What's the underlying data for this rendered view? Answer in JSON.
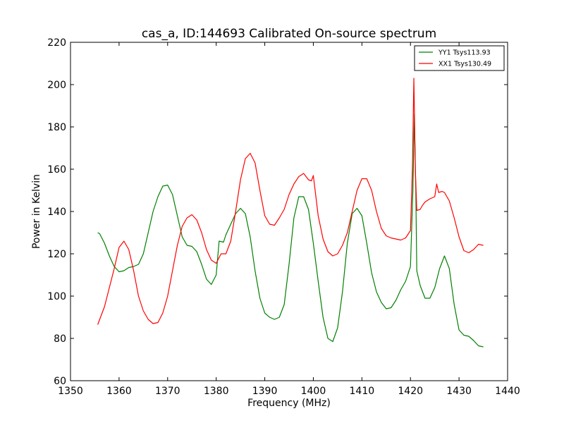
{
  "chart_data": {
    "type": "line",
    "title": "cas_a, ID:144693 Calibrated On-source spectrum",
    "xlabel": "Frequency (MHz)",
    "ylabel": "Power in Kelvin",
    "xlim": [
      1350,
      1440
    ],
    "ylim": [
      60,
      220
    ],
    "xticks": [
      1350,
      1360,
      1370,
      1380,
      1390,
      1400,
      1410,
      1420,
      1430,
      1440
    ],
    "yticks": [
      60,
      80,
      100,
      120,
      140,
      160,
      180,
      200,
      220
    ],
    "grid": false,
    "legend_position": "top-right",
    "series": [
      {
        "name": "YY1 Tsys113.93",
        "color": "#008000",
        "points": [
          [
            1355.6,
            130
          ],
          [
            1356.0,
            129.5
          ],
          [
            1357.0,
            125
          ],
          [
            1358.0,
            119
          ],
          [
            1359.0,
            114
          ],
          [
            1360.0,
            111.5
          ],
          [
            1361.0,
            112
          ],
          [
            1362.0,
            113.5
          ],
          [
            1363.0,
            114
          ],
          [
            1364.0,
            115
          ],
          [
            1365.0,
            120
          ],
          [
            1366.0,
            130
          ],
          [
            1367.0,
            140
          ],
          [
            1368.0,
            147
          ],
          [
            1369.0,
            152
          ],
          [
            1370.0,
            152.5
          ],
          [
            1371.0,
            148
          ],
          [
            1372.0,
            138
          ],
          [
            1373.0,
            128
          ],
          [
            1374.0,
            124
          ],
          [
            1375.0,
            123.5
          ],
          [
            1376.0,
            121
          ],
          [
            1377.0,
            115
          ],
          [
            1378.0,
            108
          ],
          [
            1379.0,
            105.5
          ],
          [
            1380.0,
            110
          ],
          [
            1380.6,
            126
          ],
          [
            1381.5,
            125.5
          ],
          [
            1382.0,
            129
          ],
          [
            1383.0,
            134
          ],
          [
            1384.0,
            139
          ],
          [
            1385.0,
            141.5
          ],
          [
            1386.0,
            139
          ],
          [
            1387.0,
            128
          ],
          [
            1388.0,
            112
          ],
          [
            1389.0,
            99
          ],
          [
            1390.0,
            92
          ],
          [
            1391.0,
            90
          ],
          [
            1392.0,
            89
          ],
          [
            1393.0,
            90
          ],
          [
            1394.0,
            96
          ],
          [
            1395.0,
            115
          ],
          [
            1396.0,
            137
          ],
          [
            1397.0,
            147
          ],
          [
            1398.0,
            147
          ],
          [
            1399.0,
            141
          ],
          [
            1400.0,
            125
          ],
          [
            1401.0,
            107
          ],
          [
            1402.0,
            90
          ],
          [
            1403.0,
            80
          ],
          [
            1404.0,
            78.5
          ],
          [
            1405.0,
            85
          ],
          [
            1406.0,
            102
          ],
          [
            1407.0,
            125
          ],
          [
            1408.0,
            139
          ],
          [
            1409.0,
            141.5
          ],
          [
            1410.0,
            138
          ],
          [
            1411.0,
            125
          ],
          [
            1412.0,
            111
          ],
          [
            1413.0,
            102
          ],
          [
            1414.0,
            97
          ],
          [
            1415.0,
            94
          ],
          [
            1416.0,
            94.5
          ],
          [
            1417.0,
            98
          ],
          [
            1418.0,
            103
          ],
          [
            1419.0,
            107
          ],
          [
            1420.0,
            114
          ],
          [
            1420.5,
            150
          ],
          [
            1420.8,
            186
          ],
          [
            1421.1,
            150
          ],
          [
            1421.3,
            112
          ],
          [
            1422.0,
            105
          ],
          [
            1423.0,
            99
          ],
          [
            1424.0,
            99
          ],
          [
            1425.0,
            104
          ],
          [
            1426.0,
            113
          ],
          [
            1427.0,
            119
          ],
          [
            1428.0,
            113
          ],
          [
            1429.0,
            96
          ],
          [
            1430.0,
            84
          ],
          [
            1431.0,
            81.5
          ],
          [
            1432.0,
            81
          ],
          [
            1433.0,
            79
          ],
          [
            1434.0,
            76.5
          ],
          [
            1435.0,
            76
          ]
        ]
      },
      {
        "name": "XX1 Tsys130.49",
        "color": "#ff0000",
        "points": [
          [
            1355.6,
            86.5
          ],
          [
            1357.0,
            95
          ],
          [
            1358.0,
            104
          ],
          [
            1359.0,
            113
          ],
          [
            1360.0,
            123
          ],
          [
            1361.0,
            126
          ],
          [
            1362.0,
            122
          ],
          [
            1363.0,
            112
          ],
          [
            1364.0,
            100
          ],
          [
            1365.0,
            93
          ],
          [
            1366.0,
            89
          ],
          [
            1367.0,
            87
          ],
          [
            1368.0,
            87.5
          ],
          [
            1369.0,
            92
          ],
          [
            1370.0,
            100
          ],
          [
            1371.0,
            112
          ],
          [
            1372.0,
            124
          ],
          [
            1373.0,
            133
          ],
          [
            1374.0,
            137
          ],
          [
            1375.0,
            138.5
          ],
          [
            1376.0,
            136
          ],
          [
            1377.0,
            130
          ],
          [
            1378.0,
            122
          ],
          [
            1379.0,
            117
          ],
          [
            1380.0,
            115.5
          ],
          [
            1381.0,
            120
          ],
          [
            1382.0,
            120
          ],
          [
            1383.0,
            126
          ],
          [
            1384.0,
            140
          ],
          [
            1385.0,
            155
          ],
          [
            1386.0,
            165
          ],
          [
            1387.0,
            167.5
          ],
          [
            1388.0,
            163
          ],
          [
            1389.0,
            150
          ],
          [
            1390.0,
            138
          ],
          [
            1391.0,
            134
          ],
          [
            1392.0,
            133.5
          ],
          [
            1393.0,
            137
          ],
          [
            1394.0,
            141
          ],
          [
            1395.0,
            148
          ],
          [
            1396.0,
            153
          ],
          [
            1397.0,
            156.5
          ],
          [
            1398.0,
            158
          ],
          [
            1399.0,
            155
          ],
          [
            1399.6,
            154.5
          ],
          [
            1400.0,
            157
          ],
          [
            1401.0,
            138
          ],
          [
            1402.0,
            127
          ],
          [
            1403.0,
            121
          ],
          [
            1404.0,
            119
          ],
          [
            1405.0,
            120
          ],
          [
            1406.0,
            124
          ],
          [
            1407.0,
            130
          ],
          [
            1408.0,
            140
          ],
          [
            1409.0,
            150
          ],
          [
            1410.0,
            155.5
          ],
          [
            1411.0,
            155.5
          ],
          [
            1412.0,
            150
          ],
          [
            1413.0,
            140
          ],
          [
            1414.0,
            132
          ],
          [
            1415.0,
            128.5
          ],
          [
            1416.0,
            127.5
          ],
          [
            1417.0,
            127
          ],
          [
            1418.0,
            126.5
          ],
          [
            1419.0,
            127.5
          ],
          [
            1420.0,
            131
          ],
          [
            1420.4,
            160
          ],
          [
            1420.7,
            203
          ],
          [
            1421.0,
            160
          ],
          [
            1421.3,
            140.5
          ],
          [
            1422.0,
            141
          ],
          [
            1422.5,
            143
          ],
          [
            1423.0,
            144.5
          ],
          [
            1424.0,
            146
          ],
          [
            1425.0,
            147
          ],
          [
            1425.4,
            153
          ],
          [
            1425.8,
            149
          ],
          [
            1426.5,
            149.5
          ],
          [
            1427.0,
            149
          ],
          [
            1428.0,
            145
          ],
          [
            1429.0,
            137
          ],
          [
            1430.0,
            128
          ],
          [
            1431.0,
            121.5
          ],
          [
            1432.0,
            120.5
          ],
          [
            1433.0,
            122
          ],
          [
            1434.0,
            124.5
          ],
          [
            1435.0,
            124
          ]
        ]
      }
    ]
  }
}
